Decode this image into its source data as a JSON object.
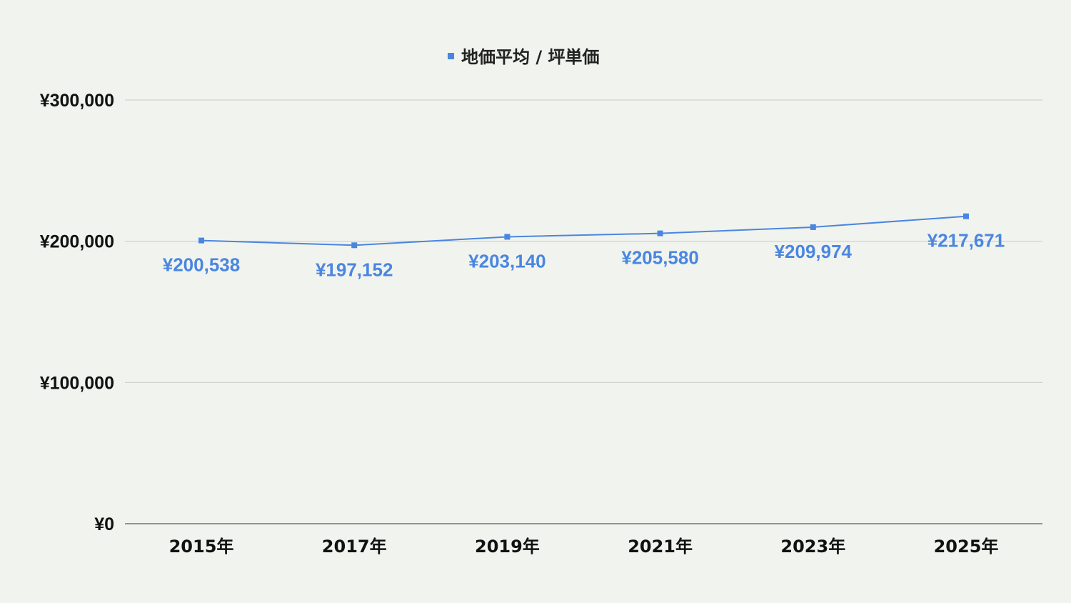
{
  "colors": {
    "series": "#4a86e0",
    "label": "#4a86e0",
    "grid": "#c9cbc6",
    "background": "#f1f3ee"
  },
  "chart_data": {
    "type": "line",
    "title": "",
    "xlabel": "",
    "ylabel": "",
    "categories": [
      "2015年",
      "2017年",
      "2019年",
      "2021年",
      "2023年",
      "2025年"
    ],
    "series": [
      {
        "name": "地価平均 / 坪単価",
        "values": [
          200538,
          197152,
          203140,
          205580,
          209974,
          217671
        ],
        "labels": [
          "¥200,538",
          "¥197,152",
          "¥203,140",
          "¥205,580",
          "¥209,974",
          "¥217,671"
        ]
      }
    ],
    "ylim": [
      0,
      300000
    ],
    "yticks": [
      0,
      100000,
      200000,
      300000
    ],
    "ytick_labels": [
      "¥0",
      "¥100,000",
      "¥200,000",
      "¥300,000"
    ],
    "grid": true,
    "legend_position": "top-center"
  }
}
